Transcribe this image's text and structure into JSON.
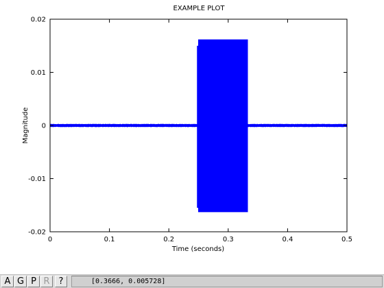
{
  "chart_data": {
    "type": "line",
    "title": "EXAMPLE PLOT",
    "xlabel": "Time (seconds)",
    "ylabel": "Magnitude",
    "xlim": [
      0,
      0.5
    ],
    "ylim": [
      -0.02,
      0.02
    ],
    "xticks": [
      0,
      0.1,
      0.2,
      0.3,
      0.4,
      0.5
    ],
    "xtick_labels": [
      "0",
      "0.1",
      "0.2",
      "0.3",
      "0.4",
      "0.5"
    ],
    "yticks": [
      -0.02,
      -0.01,
      0,
      0.01,
      0.02
    ],
    "ytick_labels": [
      "-0.02",
      "-0.01",
      "0",
      "0.01",
      "0.02"
    ],
    "grid": false,
    "series": [
      {
        "color": "#0000ff",
        "segments": [
          {
            "x": [
              0,
              0.248
            ],
            "min": -0.0003,
            "max": 0.0003
          },
          {
            "x": [
              0.248,
              0.25
            ],
            "min": -0.0155,
            "max": 0.015
          },
          {
            "x": [
              0.25,
              0.333
            ],
            "min": -0.0163,
            "max": 0.0162
          },
          {
            "x": [
              0.333,
              0.5
            ],
            "min": -0.0003,
            "max": 0.0003
          }
        ]
      }
    ]
  },
  "toolbar": {
    "buttons": [
      {
        "label": "A",
        "enabled": true
      },
      {
        "label": "G",
        "enabled": true
      },
      {
        "label": "P",
        "enabled": true
      },
      {
        "label": "R",
        "enabled": false
      },
      {
        "label": "?",
        "enabled": true
      }
    ],
    "coordinates": "[0.3666, 0.005728]"
  }
}
